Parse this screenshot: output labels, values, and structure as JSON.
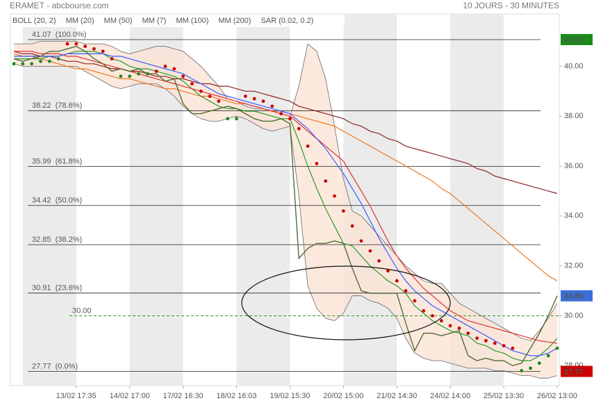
{
  "chart_data": {
    "type": "line",
    "title": "ERAMET - abcbourse.com",
    "subtitle": "10 JOURS - 30 MINUTES",
    "xlim": [
      0,
      61
    ],
    "xticks": [
      {
        "value": 7,
        "label": "13/02 17:35"
      },
      {
        "value": 13,
        "label": "14/02 17:00"
      },
      {
        "value": 19,
        "label": "17/02 16:30"
      },
      {
        "value": 25,
        "label": "18/02 16:03"
      },
      {
        "value": 31,
        "label": "19/02 15:30"
      },
      {
        "value": 37,
        "label": "20/02 15:00"
      },
      {
        "value": 43,
        "label": "21/02 14:30"
      },
      {
        "value": 49,
        "label": "24/02 14:00"
      },
      {
        "value": 55,
        "label": "25/02 13:30"
      },
      {
        "value": 61,
        "label": "26/02 13:00"
      }
    ],
    "ylim": [
      27.2,
      42.1
    ],
    "yticks": [
      {
        "value": 28,
        "label": "28.00"
      },
      {
        "value": 30,
        "label": "30.00"
      },
      {
        "value": 32,
        "label": "32.00"
      },
      {
        "value": 34,
        "label": "34.00"
      },
      {
        "value": 36,
        "label": "36.00"
      },
      {
        "value": 38,
        "label": "38.00"
      },
      {
        "value": 40,
        "label": "40.00"
      }
    ],
    "price": {
      "color": "#4f6b32",
      "values": [
        40.3,
        40.2,
        40.3,
        40.4,
        40.6,
        40.6,
        40.7,
        40.8,
        40.6,
        40.3,
        40.1,
        39.8,
        39.9,
        39.8,
        39.9,
        39.7,
        39.7,
        39.4,
        39.5,
        38.5,
        38.1,
        38.1,
        38.2,
        38.3,
        38.4,
        38.3,
        38.1,
        37.9,
        37.8,
        37.8,
        37.9,
        37.7,
        32.3,
        32.7,
        32.9,
        32.9,
        33.0,
        32.9,
        31.9,
        31.0,
        30.9,
        30.9,
        30.9,
        30.9,
        29.7,
        28.6,
        29.3,
        29.3,
        29.2,
        29.3,
        29.4,
        28.4,
        28.2,
        28.3,
        28.2,
        28.2,
        28.0,
        28.1,
        28.7,
        29.3,
        30.0,
        30.8
      ]
    },
    "bollinger": {
      "name": "BOLL (20, 2)",
      "color": "#666666",
      "fill": "#fbe3d6",
      "upper": [
        40.9,
        40.9,
        40.9,
        41.0,
        41.0,
        41.0,
        41.0,
        41.0,
        40.9,
        40.9,
        40.9,
        40.8,
        40.6,
        40.5,
        40.6,
        40.7,
        40.8,
        40.8,
        40.7,
        40.6,
        40.3,
        40.0,
        39.6,
        39.2,
        38.7,
        38.6,
        38.4,
        38.3,
        38.3,
        38.2,
        38.1,
        38.0,
        39.2,
        40.9,
        40.6,
        39.5,
        37.6,
        35.5,
        34.2,
        34.0,
        33.6,
        33.2,
        32.8,
        32.4,
        32.0,
        31.7,
        31.4,
        31.3,
        31.3,
        30.9,
        30.5,
        30.3,
        30.1,
        29.9,
        29.7,
        29.5,
        29.3,
        29.1,
        29.0,
        29.4,
        29.9,
        30.5
      ],
      "lower": [
        40.1,
        40.0,
        40.0,
        40.0,
        40.0,
        40.0,
        40.0,
        40.0,
        39.8,
        39.6,
        39.4,
        39.2,
        39.1,
        39.2,
        39.3,
        39.3,
        39.3,
        39.1,
        38.8,
        38.4,
        38.1,
        37.9,
        37.8,
        37.8,
        37.9,
        38.0,
        37.9,
        37.7,
        37.5,
        37.4,
        37.5,
        37.6,
        34.8,
        31.2,
        30.3,
        29.9,
        29.8,
        30.1,
        30.8,
        30.8,
        30.6,
        30.5,
        30.3,
        29.9,
        29.1,
        28.5,
        28.3,
        28.2,
        28.2,
        28.1,
        28.0,
        27.9,
        27.9,
        27.9,
        27.8,
        27.8,
        27.7,
        27.6,
        27.6,
        27.5,
        27.5,
        27.6
      ]
    },
    "series": [
      {
        "name": "MM (20)",
        "color": "#3b5bff",
        "values": [
          40.4,
          40.4,
          40.4,
          40.4,
          40.4,
          40.4,
          40.5,
          40.5,
          40.5,
          40.5,
          40.5,
          40.4,
          40.4,
          40.3,
          40.2,
          40.1,
          40.0,
          39.9,
          39.8,
          39.7,
          39.5,
          39.3,
          39.1,
          38.9,
          38.8,
          38.7,
          38.6,
          38.5,
          38.4,
          38.3,
          38.2,
          38.1,
          37.8,
          37.5,
          37.1,
          36.7,
          36.2,
          35.7,
          35.1,
          34.5,
          33.8,
          33.1,
          32.5,
          31.9,
          31.4,
          31.0,
          30.7,
          30.4,
          30.2,
          30.0,
          29.8,
          29.6,
          29.4,
          29.2,
          29.0,
          28.8,
          28.6,
          28.5,
          28.4,
          28.4,
          28.5,
          28.7
        ]
      },
      {
        "name": "MM (50)",
        "color": "#e03030",
        "values": [
          40.6,
          40.6,
          40.6,
          40.5,
          40.5,
          40.5,
          40.4,
          40.4,
          40.3,
          40.2,
          40.1,
          40.0,
          39.9,
          39.8,
          39.7,
          39.6,
          39.5,
          39.4,
          39.3,
          39.2,
          39.1,
          39.0,
          38.9,
          38.8,
          38.7,
          38.6,
          38.5,
          38.4,
          38.3,
          38.2,
          38.1,
          38.0,
          37.7,
          37.4,
          37.1,
          36.8,
          36.5,
          36.2,
          35.6,
          35.0,
          34.4,
          33.7,
          33.0,
          32.4,
          31.9,
          31.5,
          31.1,
          30.8,
          30.5,
          30.2,
          30.0,
          29.8,
          29.7,
          29.6,
          29.5,
          29.4,
          29.3,
          29.2,
          29.1,
          29.0,
          28.95,
          28.9
        ]
      },
      {
        "name": "MM (7)",
        "color": "#2a9a2a",
        "values": [
          40.3,
          40.3,
          40.3,
          40.3,
          40.4,
          40.4,
          40.5,
          40.6,
          40.6,
          40.6,
          40.5,
          40.3,
          40.2,
          40.0,
          39.9,
          39.9,
          39.8,
          39.7,
          39.6,
          39.4,
          39.1,
          38.8,
          38.6,
          38.4,
          38.3,
          38.3,
          38.2,
          38.2,
          38.1,
          38.0,
          37.9,
          37.9,
          37.0,
          36.0,
          35.1,
          34.3,
          33.6,
          32.9,
          32.8,
          32.4,
          32.0,
          31.7,
          31.4,
          31.2,
          30.9,
          30.4,
          30.1,
          29.8,
          29.6,
          29.4,
          29.3,
          29.2,
          28.9,
          28.8,
          28.6,
          28.5,
          28.3,
          28.2,
          28.2,
          28.4,
          28.7,
          29.1
        ]
      },
      {
        "name": "MM (100)",
        "color": "#f07820",
        "values": [
          40.5,
          40.4,
          40.4,
          40.3,
          40.2,
          40.1,
          40.0,
          39.9,
          39.9,
          39.8,
          39.7,
          39.6,
          39.5,
          39.5,
          39.4,
          39.3,
          39.2,
          39.1,
          39.1,
          39.0,
          38.9,
          38.8,
          38.8,
          38.7,
          38.6,
          38.5,
          38.5,
          38.4,
          38.3,
          38.2,
          38.2,
          38.1,
          38.0,
          37.9,
          37.8,
          37.7,
          37.6,
          37.4,
          37.2,
          37.0,
          36.8,
          36.6,
          36.4,
          36.2,
          36.0,
          35.8,
          35.6,
          35.4,
          35.1,
          34.9,
          34.6,
          34.3,
          34.0,
          33.7,
          33.4,
          33.1,
          32.8,
          32.5,
          32.2,
          31.9,
          31.6,
          31.4
        ]
      },
      {
        "name": "MM (200)",
        "color": "#8b2424",
        "values": [
          40.6,
          40.5,
          40.5,
          40.4,
          40.4,
          40.3,
          40.2,
          40.2,
          40.1,
          40.1,
          40.0,
          39.9,
          39.9,
          39.8,
          39.8,
          39.7,
          39.6,
          39.6,
          39.5,
          39.5,
          39.4,
          39.3,
          39.3,
          39.2,
          39.2,
          39.1,
          39.0,
          39.0,
          38.9,
          38.8,
          38.7,
          38.6,
          38.4,
          38.3,
          38.2,
          38.1,
          38.0,
          37.9,
          37.7,
          37.6,
          37.4,
          37.3,
          37.1,
          37.0,
          36.8,
          36.7,
          36.6,
          36.5,
          36.4,
          36.3,
          36.2,
          36.1,
          35.9,
          35.8,
          35.6,
          35.5,
          35.4,
          35.3,
          35.2,
          35.1,
          35.0,
          34.9
        ]
      }
    ],
    "sar": {
      "name": "SAR (0.02, 0.2)",
      "color": "#cc0000",
      "color_below": "#1a8a1a",
      "values": [
        40.1,
        40.1,
        40.1,
        40.2,
        40.2,
        40.3,
        40.9,
        40.9,
        40.8,
        40.7,
        40.6,
        40.3,
        39.6,
        39.6,
        39.7,
        39.7,
        39.8,
        40.0,
        39.9,
        39.6,
        39.3,
        39.0,
        38.8,
        38.6,
        37.9,
        37.9,
        38.8,
        38.7,
        38.6,
        38.4,
        38.1,
        37.9,
        37.5,
        36.8,
        36.1,
        35.4,
        34.8,
        34.2,
        33.6,
        33.0,
        32.6,
        32.2,
        31.8,
        31.4,
        31.0,
        30.6,
        30.2,
        30.0,
        29.8,
        29.6,
        29.5,
        29.3,
        29.1,
        29.0,
        28.9,
        28.8,
        28.7,
        27.8,
        27.9,
        28.1,
        28.4,
        28.7
      ]
    },
    "fib_levels": [
      {
        "value": 41.07,
        "label": "41.07  (100.0%)"
      },
      {
        "value": 38.22,
        "label": "38.22  (78.6%)"
      },
      {
        "value": 35.99,
        "label": "35.99  (61.8%)"
      },
      {
        "value": 34.42,
        "label": "34.42  (50.0%)"
      },
      {
        "value": 32.85,
        "label": "32.85  (38.2%)"
      },
      {
        "value": 30.91,
        "label": "30.91  (23.6%)"
      },
      {
        "value": 27.77,
        "label": "27.77  (0.0%)"
      }
    ],
    "reference": {
      "value": 30,
      "label": "30.00",
      "color": "#2a9a2a"
    },
    "markers": {
      "values": [
        41.07,
        30.8,
        27.77
      ],
      "value_labels": [
        "41.07",
        "30.80",
        "27.77"
      ],
      "colors": [
        "#1a8a1a",
        "#3b6fd8",
        "#cc0000"
      ]
    }
  }
}
